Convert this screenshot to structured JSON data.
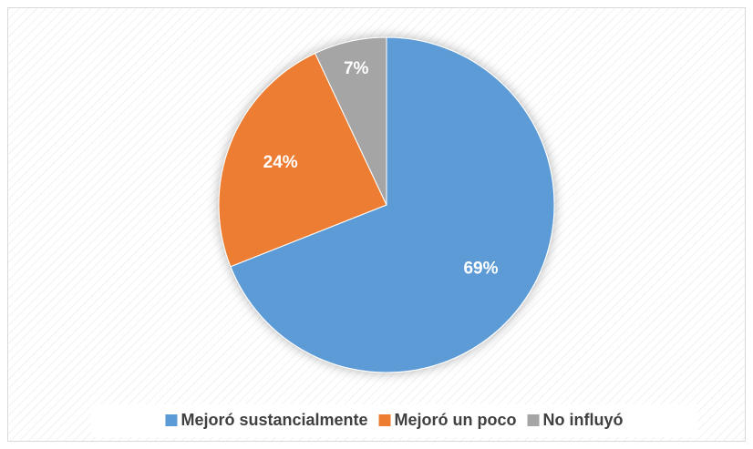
{
  "chart_data": {
    "type": "pie",
    "categories": [
      "Mejoró sustancialmente",
      "Mejoró un poco",
      "No influyó"
    ],
    "values": [
      69,
      24,
      7
    ],
    "value_labels": [
      "69%",
      "24%",
      "7%"
    ],
    "colors": [
      "#5b9bd5",
      "#ed7d31",
      "#a5a5a5"
    ],
    "legend": "bottom"
  }
}
